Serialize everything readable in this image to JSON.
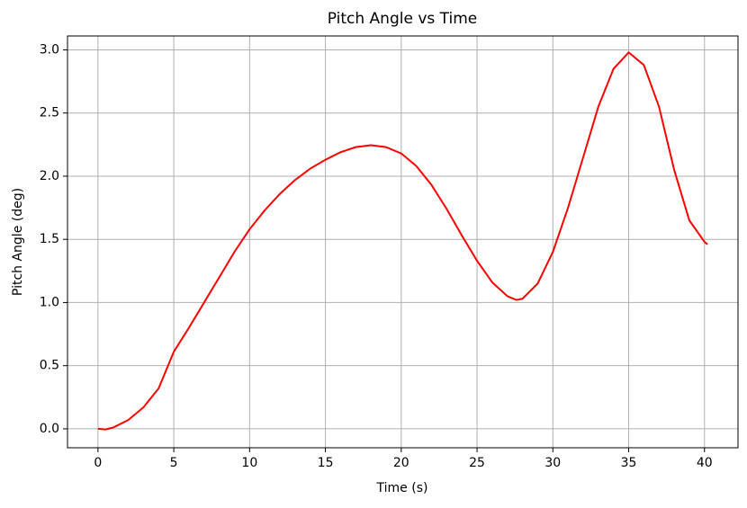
{
  "chart_data": {
    "type": "line",
    "title": "Pitch Angle vs Time",
    "xlabel": "Time (s)",
    "ylabel": "Pitch Angle (deg)",
    "x": [
      0,
      0.5,
      1,
      2,
      3,
      4,
      5,
      6,
      7,
      8,
      9,
      10,
      11,
      12,
      13,
      14,
      15,
      16,
      17,
      18,
      19,
      20,
      21,
      22,
      23,
      24,
      25,
      26,
      27,
      27.6,
      28,
      29,
      30,
      31,
      32,
      33,
      34,
      35,
      36,
      37,
      38,
      39,
      40,
      40.2
    ],
    "series": [
      {
        "name": "Pitch Angle",
        "color": "#ff0000",
        "values": [
          0,
          -0.005,
          0.01,
          0.07,
          0.17,
          0.32,
          0.61,
          0.8,
          1.0,
          1.2,
          1.4,
          1.58,
          1.73,
          1.86,
          1.97,
          2.06,
          2.13,
          2.19,
          2.23,
          2.245,
          2.23,
          2.18,
          2.08,
          1.93,
          1.74,
          1.53,
          1.33,
          1.16,
          1.05,
          1.02,
          1.03,
          1.15,
          1.4,
          1.75,
          2.15,
          2.55,
          2.85,
          2.98,
          2.88,
          2.55,
          2.05,
          1.65,
          1.48,
          1.46
        ]
      }
    ],
    "xlim": [
      -2.01,
      42.21
    ],
    "ylim": [
      -0.15,
      3.11
    ],
    "xticks": [
      0,
      5,
      10,
      15,
      20,
      25,
      30,
      35,
      40
    ],
    "yticks": [
      {
        "value": 0,
        "label": "0.0"
      },
      0.5,
      {
        "value": 1,
        "label": "1.0"
      },
      1.5,
      {
        "value": 2,
        "label": "2.0"
      },
      2.5,
      {
        "value": 3,
        "label": "3.0"
      }
    ],
    "grid": true
  }
}
